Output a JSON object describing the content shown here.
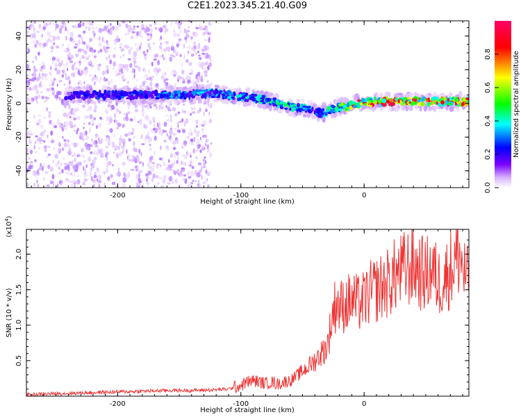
{
  "figure": {
    "title": "C2E1.2023.345.21.40.G09"
  },
  "chart_data": [
    {
      "type": "heatmap",
      "title": "",
      "xlabel": "Height of straight line (km)",
      "ylabel": "Frequency (Hz)",
      "xlim": [
        -274,
        85
      ],
      "ylim": [
        -50,
        49
      ],
      "xticks": [
        "-200",
        "-100",
        "0"
      ],
      "yticks": [
        "-40",
        "-20",
        "0",
        "20",
        "40"
      ],
      "colorbar": {
        "label": "Normalized spectral amplitude",
        "ticks": [
          "0.0",
          "0.2",
          "0.4",
          "0.6",
          "0.8"
        ],
        "range": [
          0,
          1
        ],
        "colormap": [
          "#ffffff",
          "#d9b3ff",
          "#6600ff",
          "#0000ff",
          "#00ffff",
          "#00ff00",
          "#ffff00",
          "#ff0000",
          "#ff0066"
        ]
      },
      "ridge": {
        "description_x": [
          -240,
          -200,
          -150,
          -120,
          -100,
          -80,
          -60,
          -45,
          -35,
          -25,
          -15,
          -5,
          0,
          20,
          40,
          60,
          80,
          85
        ],
        "frequency": [
          5,
          5,
          5,
          6,
          4,
          2,
          -2,
          -3,
          -6,
          -3,
          -2,
          0,
          1,
          1,
          1,
          1,
          1,
          1
        ],
        "amplitude": [
          0.35,
          0.4,
          0.45,
          0.45,
          0.5,
          0.55,
          0.55,
          0.5,
          0.45,
          0.6,
          0.7,
          0.8,
          0.85,
          0.9,
          0.9,
          0.9,
          0.9,
          0.9
        ]
      }
    },
    {
      "type": "line",
      "title": "",
      "xlabel": "Height of straight line (km)",
      "ylabel": "SNR (10 * v/v)",
      "yscale_label": "(x10",
      "yscale_exp": "4",
      "yscale_close": ")",
      "xlim": [
        -274,
        85
      ],
      "ylim": [
        0,
        2.35
      ],
      "xticks": [
        "-200",
        "-100",
        "0"
      ],
      "yticks": [
        "0.5",
        "1.0",
        "1.5",
        "2.0"
      ],
      "series": [
        {
          "color": "#ee3333",
          "x": [
            -274,
            -260,
            -240,
            -220,
            -200,
            -180,
            -160,
            -140,
            -120,
            -110,
            -100,
            -95,
            -90,
            -85,
            -80,
            -75,
            -70,
            -65,
            -60,
            -55,
            -50,
            -45,
            -40,
            -35,
            -30,
            -27,
            -25,
            -22,
            -20,
            -15,
            -10,
            -5,
            0,
            5,
            10,
            15,
            20,
            25,
            30,
            35,
            40,
            45,
            50,
            55,
            60,
            65,
            70,
            75,
            78,
            80,
            85
          ],
          "y": [
            0.02,
            0.03,
            0.04,
            0.05,
            0.06,
            0.07,
            0.08,
            0.08,
            0.09,
            0.1,
            0.15,
            0.2,
            0.22,
            0.2,
            0.18,
            0.2,
            0.17,
            0.2,
            0.22,
            0.28,
            0.35,
            0.42,
            0.5,
            0.6,
            0.7,
            1.0,
            1.2,
            1.35,
            1.25,
            1.3,
            1.35,
            1.3,
            1.35,
            1.45,
            1.5,
            1.55,
            1.6,
            1.7,
            1.75,
            1.8,
            1.85,
            1.75,
            1.7,
            1.8,
            1.6,
            1.65,
            1.8,
            1.95,
            2.0,
            1.8,
            1.55
          ]
        }
      ]
    }
  ]
}
